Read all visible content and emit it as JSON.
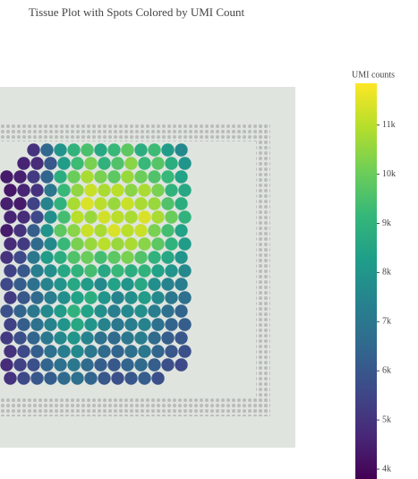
{
  "chart_data": {
    "type": "heatmap",
    "title": "Tissue Plot with Spots Colored by UMI Count",
    "colorbar_title": "UMI counts",
    "colorscale": [
      "#440154",
      "#482878",
      "#3e4989",
      "#31688e",
      "#26828e",
      "#1f9e89",
      "#35b779",
      "#6ece58",
      "#b5de2b",
      "#fde725"
    ],
    "clim": [
      3800,
      11850
    ],
    "cticks": [
      {
        "value": 4000,
        "label": "4k"
      },
      {
        "value": 5000,
        "label": "5k"
      },
      {
        "value": 6000,
        "label": "6k"
      },
      {
        "value": 7000,
        "label": "7k"
      },
      {
        "value": 8000,
        "label": "8k"
      },
      {
        "value": 9000,
        "label": "9k"
      },
      {
        "value": 10000,
        "label": "10k"
      },
      {
        "value": 11000,
        "label": "11k"
      }
    ],
    "z": [
      [
        null,
        null,
        5000,
        6500,
        8000,
        9000,
        9500,
        8600,
        9200,
        9800,
        8800,
        9300,
        8200,
        7600
      ],
      [
        null,
        4600,
        4800,
        6000,
        8200,
        9300,
        10200,
        9000,
        9600,
        10400,
        9200,
        9700,
        8800,
        8000
      ],
      [
        4400,
        4500,
        5200,
        6400,
        8800,
        10000,
        10800,
        10200,
        9800,
        10600,
        10000,
        9600,
        9200,
        8400
      ],
      [
        4300,
        4600,
        5000,
        7000,
        9200,
        10500,
        11200,
        10800,
        11000,
        10400,
        10800,
        10200,
        9000,
        8600
      ],
      [
        4500,
        4400,
        5400,
        7400,
        9000,
        10800,
        11400,
        11000,
        10600,
        11200,
        10800,
        10600,
        9600,
        8800
      ],
      [
        4600,
        4800,
        5600,
        7800,
        9400,
        11000,
        10600,
        11300,
        11000,
        10800,
        11400,
        10800,
        10000,
        9000
      ],
      [
        4400,
        5000,
        6200,
        8000,
        9800,
        10400,
        11200,
        10800,
        11400,
        11000,
        11200,
        10200,
        9400,
        8400
      ],
      [
        4800,
        5200,
        6600,
        7600,
        9200,
        10200,
        10600,
        11000,
        10600,
        10800,
        10400,
        9800,
        9000,
        8200
      ],
      [
        5000,
        5600,
        7000,
        8200,
        8800,
        9600,
        10000,
        9400,
        9800,
        10200,
        9600,
        9000,
        8600,
        8000
      ],
      [
        5400,
        6000,
        7200,
        7800,
        8600,
        9000,
        9400,
        8600,
        9200,
        8800,
        9000,
        8400,
        8000,
        7600
      ],
      [
        5600,
        6200,
        6800,
        7400,
        8000,
        8600,
        8200,
        7600,
        8400,
        8000,
        8600,
        7800,
        7400,
        7200
      ],
      [
        5200,
        6000,
        6600,
        7200,
        7800,
        8400,
        8800,
        8000,
        7400,
        7800,
        8200,
        7600,
        7000,
        6800
      ],
      [
        5800,
        6400,
        7000,
        7600,
        8200,
        9000,
        8400,
        7800,
        7200,
        7600,
        7800,
        7200,
        6800,
        6400
      ],
      [
        5400,
        6200,
        6800,
        7400,
        8000,
        8600,
        8000,
        7400,
        7000,
        7200,
        7400,
        6800,
        6400,
        6200
      ],
      [
        5200,
        5800,
        6400,
        7000,
        7600,
        8000,
        7400,
        6800,
        6600,
        7000,
        7200,
        6600,
        6200,
        6000
      ],
      [
        5000,
        5600,
        6200,
        6800,
        7200,
        7600,
        7000,
        6600,
        6400,
        6800,
        7000,
        6400,
        6000,
        5800
      ],
      [
        4800,
        5400,
        5800,
        6400,
        6800,
        7000,
        6600,
        6200,
        6000,
        6400,
        6600,
        6200,
        5800,
        5600
      ],
      [
        5000,
        5600,
        6000,
        6200,
        6600,
        6800,
        6400,
        6000,
        5800,
        6000,
        6200,
        5800,
        null,
        null
      ]
    ]
  }
}
